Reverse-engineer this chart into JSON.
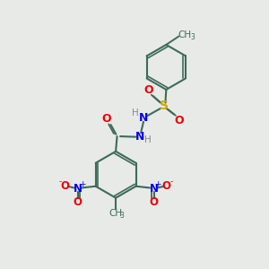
{
  "bg_color": "#e8eae8",
  "bond_color": "#3d6b58",
  "atom_colors": {
    "N": "#0000ee",
    "O": "#ee0000",
    "S": "#ccaa00",
    "H": "#888888",
    "C": "#3d6b58"
  },
  "figsize": [
    3.0,
    3.0
  ],
  "dpi": 100
}
